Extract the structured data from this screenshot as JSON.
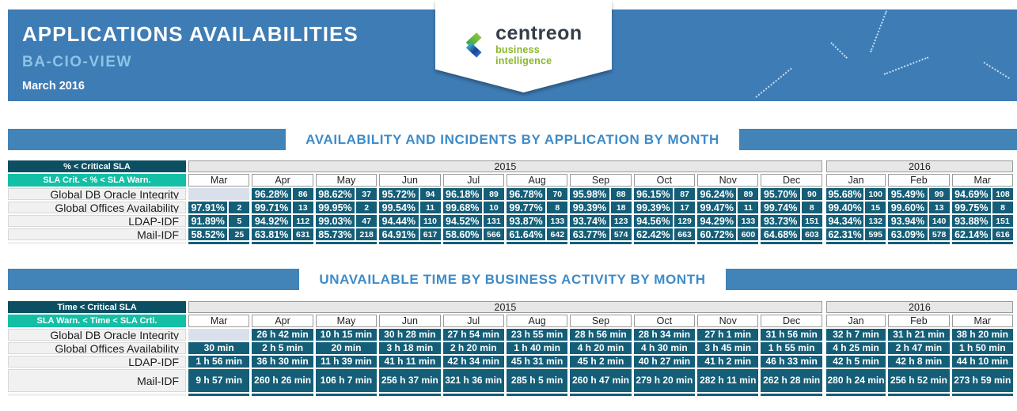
{
  "header": {
    "title": "APPLICATIONS AVAILABILITIES",
    "subtitle": "BA-CIO-VIEW",
    "period": "March 2016",
    "logo": {
      "name": "centreon",
      "tagline": "business intelligence"
    },
    "deco_icons": {
      "at": "@",
      "percent": "%"
    }
  },
  "colors": {
    "banner_blue": "#3e7cb5",
    "subtitle_blue": "#8cc3e8",
    "section_title_blue": "#3d8bc9",
    "section_bar_blue": "#4283b8",
    "legend_dark_teal": "#0c4f63",
    "legend_mint": "#13bfa5",
    "cell_teal": "#155e78",
    "empty_cell": "#d9e0ec",
    "logo_green": "#8ab829"
  },
  "availability_table": {
    "title": "AVAILABILITY AND INCIDENTS BY APPLICATION BY MONTH",
    "legend": {
      "critical": "% < Critical SLA",
      "warning": "SLA Crit. < % < SLA Warn."
    },
    "years": [
      {
        "label": "2015",
        "span": 10
      },
      {
        "label": "2016",
        "span": 3
      }
    ],
    "months": [
      "Mar",
      "Apr",
      "May",
      "Jun",
      "Jul",
      "Aug",
      "Sep",
      "Oct",
      "Nov",
      "Dec",
      "Jan",
      "Feb",
      "Mar"
    ],
    "rows": [
      {
        "label": "Global DB Oracle Integrity",
        "cells": [
          null,
          [
            "96.28%",
            "86"
          ],
          [
            "98.62%",
            "37"
          ],
          [
            "95.72%",
            "94"
          ],
          [
            "96.18%",
            "89"
          ],
          [
            "96.78%",
            "70"
          ],
          [
            "95.98%",
            "88"
          ],
          [
            "96.15%",
            "87"
          ],
          [
            "96.24%",
            "89"
          ],
          [
            "95.70%",
            "90"
          ],
          [
            "95.68%",
            "100"
          ],
          [
            "95.49%",
            "99"
          ],
          [
            "94.69%",
            "108"
          ]
        ]
      },
      {
        "label": "Global Offices Availability",
        "cells": [
          [
            "97.91%",
            "2"
          ],
          [
            "99.71%",
            "13"
          ],
          [
            "99.95%",
            "2"
          ],
          [
            "99.54%",
            "11"
          ],
          [
            "99.68%",
            "10"
          ],
          [
            "99.77%",
            "8"
          ],
          [
            "99.39%",
            "18"
          ],
          [
            "99.39%",
            "17"
          ],
          [
            "99.47%",
            "11"
          ],
          [
            "99.74%",
            "8"
          ],
          [
            "99.40%",
            "15"
          ],
          [
            "99.60%",
            "13"
          ],
          [
            "99.75%",
            "8"
          ]
        ]
      },
      {
        "label": "LDAP-IDF",
        "cells": [
          [
            "91.89%",
            "5"
          ],
          [
            "94.92%",
            "112"
          ],
          [
            "99.03%",
            "47"
          ],
          [
            "94.44%",
            "110"
          ],
          [
            "94.52%",
            "131"
          ],
          [
            "93.87%",
            "133"
          ],
          [
            "93.74%",
            "123"
          ],
          [
            "94.56%",
            "129"
          ],
          [
            "94.29%",
            "133"
          ],
          [
            "93.73%",
            "151"
          ],
          [
            "94.34%",
            "132"
          ],
          [
            "93.94%",
            "140"
          ],
          [
            "93.88%",
            "151"
          ]
        ]
      },
      {
        "label": "Mail-IDF",
        "cells": [
          [
            "58.52%",
            "25"
          ],
          [
            "63.81%",
            "631"
          ],
          [
            "85.73%",
            "218"
          ],
          [
            "64.91%",
            "617"
          ],
          [
            "58.60%",
            "566"
          ],
          [
            "61.64%",
            "642"
          ],
          [
            "63.77%",
            "574"
          ],
          [
            "62.42%",
            "663"
          ],
          [
            "60.72%",
            "600"
          ],
          [
            "64.68%",
            "603"
          ],
          [
            "62.31%",
            "595"
          ],
          [
            "63.09%",
            "578"
          ],
          [
            "62.14%",
            "616"
          ]
        ]
      }
    ]
  },
  "unavailable_table": {
    "title": "UNAVAILABLE TIME BY BUSINESS ACTIVITY BY MONTH",
    "legend": {
      "critical": "Time < Critical SLA",
      "warning": "SLA Warn. < Time < SLA Crti."
    },
    "years": [
      {
        "label": "2015",
        "span": 10
      },
      {
        "label": "2016",
        "span": 3
      }
    ],
    "months": [
      "Mar",
      "Apr",
      "May",
      "Jun",
      "Jul",
      "Aug",
      "Sep",
      "Oct",
      "Nov",
      "Dec",
      "Jan",
      "Feb",
      "Mar"
    ],
    "rows": [
      {
        "label": "Global DB Oracle Integrity",
        "cells": [
          null,
          "26 h 42 min",
          "10 h 15 min",
          "30 h 28 min",
          "27 h 54 min",
          "23 h 55 min",
          "28 h 56 min",
          "28 h 34 min",
          "27 h 1 min",
          "31 h 56 min",
          "32 h 7 min",
          "31 h 21 min",
          "38 h 20 min"
        ]
      },
      {
        "label": "Global Offices Availability",
        "cells": [
          "30 min",
          "2 h 5 min",
          "20 min",
          "3 h 18 min",
          "2 h 20 min",
          "1 h 40 min",
          "4 h 20 min",
          "4 h 30 min",
          "3 h 45 min",
          "1 h 55 min",
          "4 h 25 min",
          "2 h 47 min",
          "1 h 50 min"
        ]
      },
      {
        "label": "LDAP-IDF",
        "cells": [
          "1 h 56 min",
          "36 h 30 min",
          "11 h 39 min",
          "41 h 11 min",
          "42 h 34 min",
          "45 h 31 min",
          "45 h 2 min",
          "40 h 27 min",
          "41 h 2 min",
          "46 h 33 min",
          "42 h 5 min",
          "42 h 8 min",
          "44 h 10 min"
        ]
      },
      {
        "label": "Mail-IDF",
        "cells": [
          "9 h 57 min",
          "260 h 26 min",
          "106 h 7 min",
          "256 h 37 min",
          "321 h 36 min",
          "285 h 5 min",
          "260 h 47 min",
          "279 h 20 min",
          "282 h 11 min",
          "262 h 28 min",
          "280 h 24 min",
          "256 h 52 min",
          "273 h 59 min"
        ]
      }
    ]
  }
}
